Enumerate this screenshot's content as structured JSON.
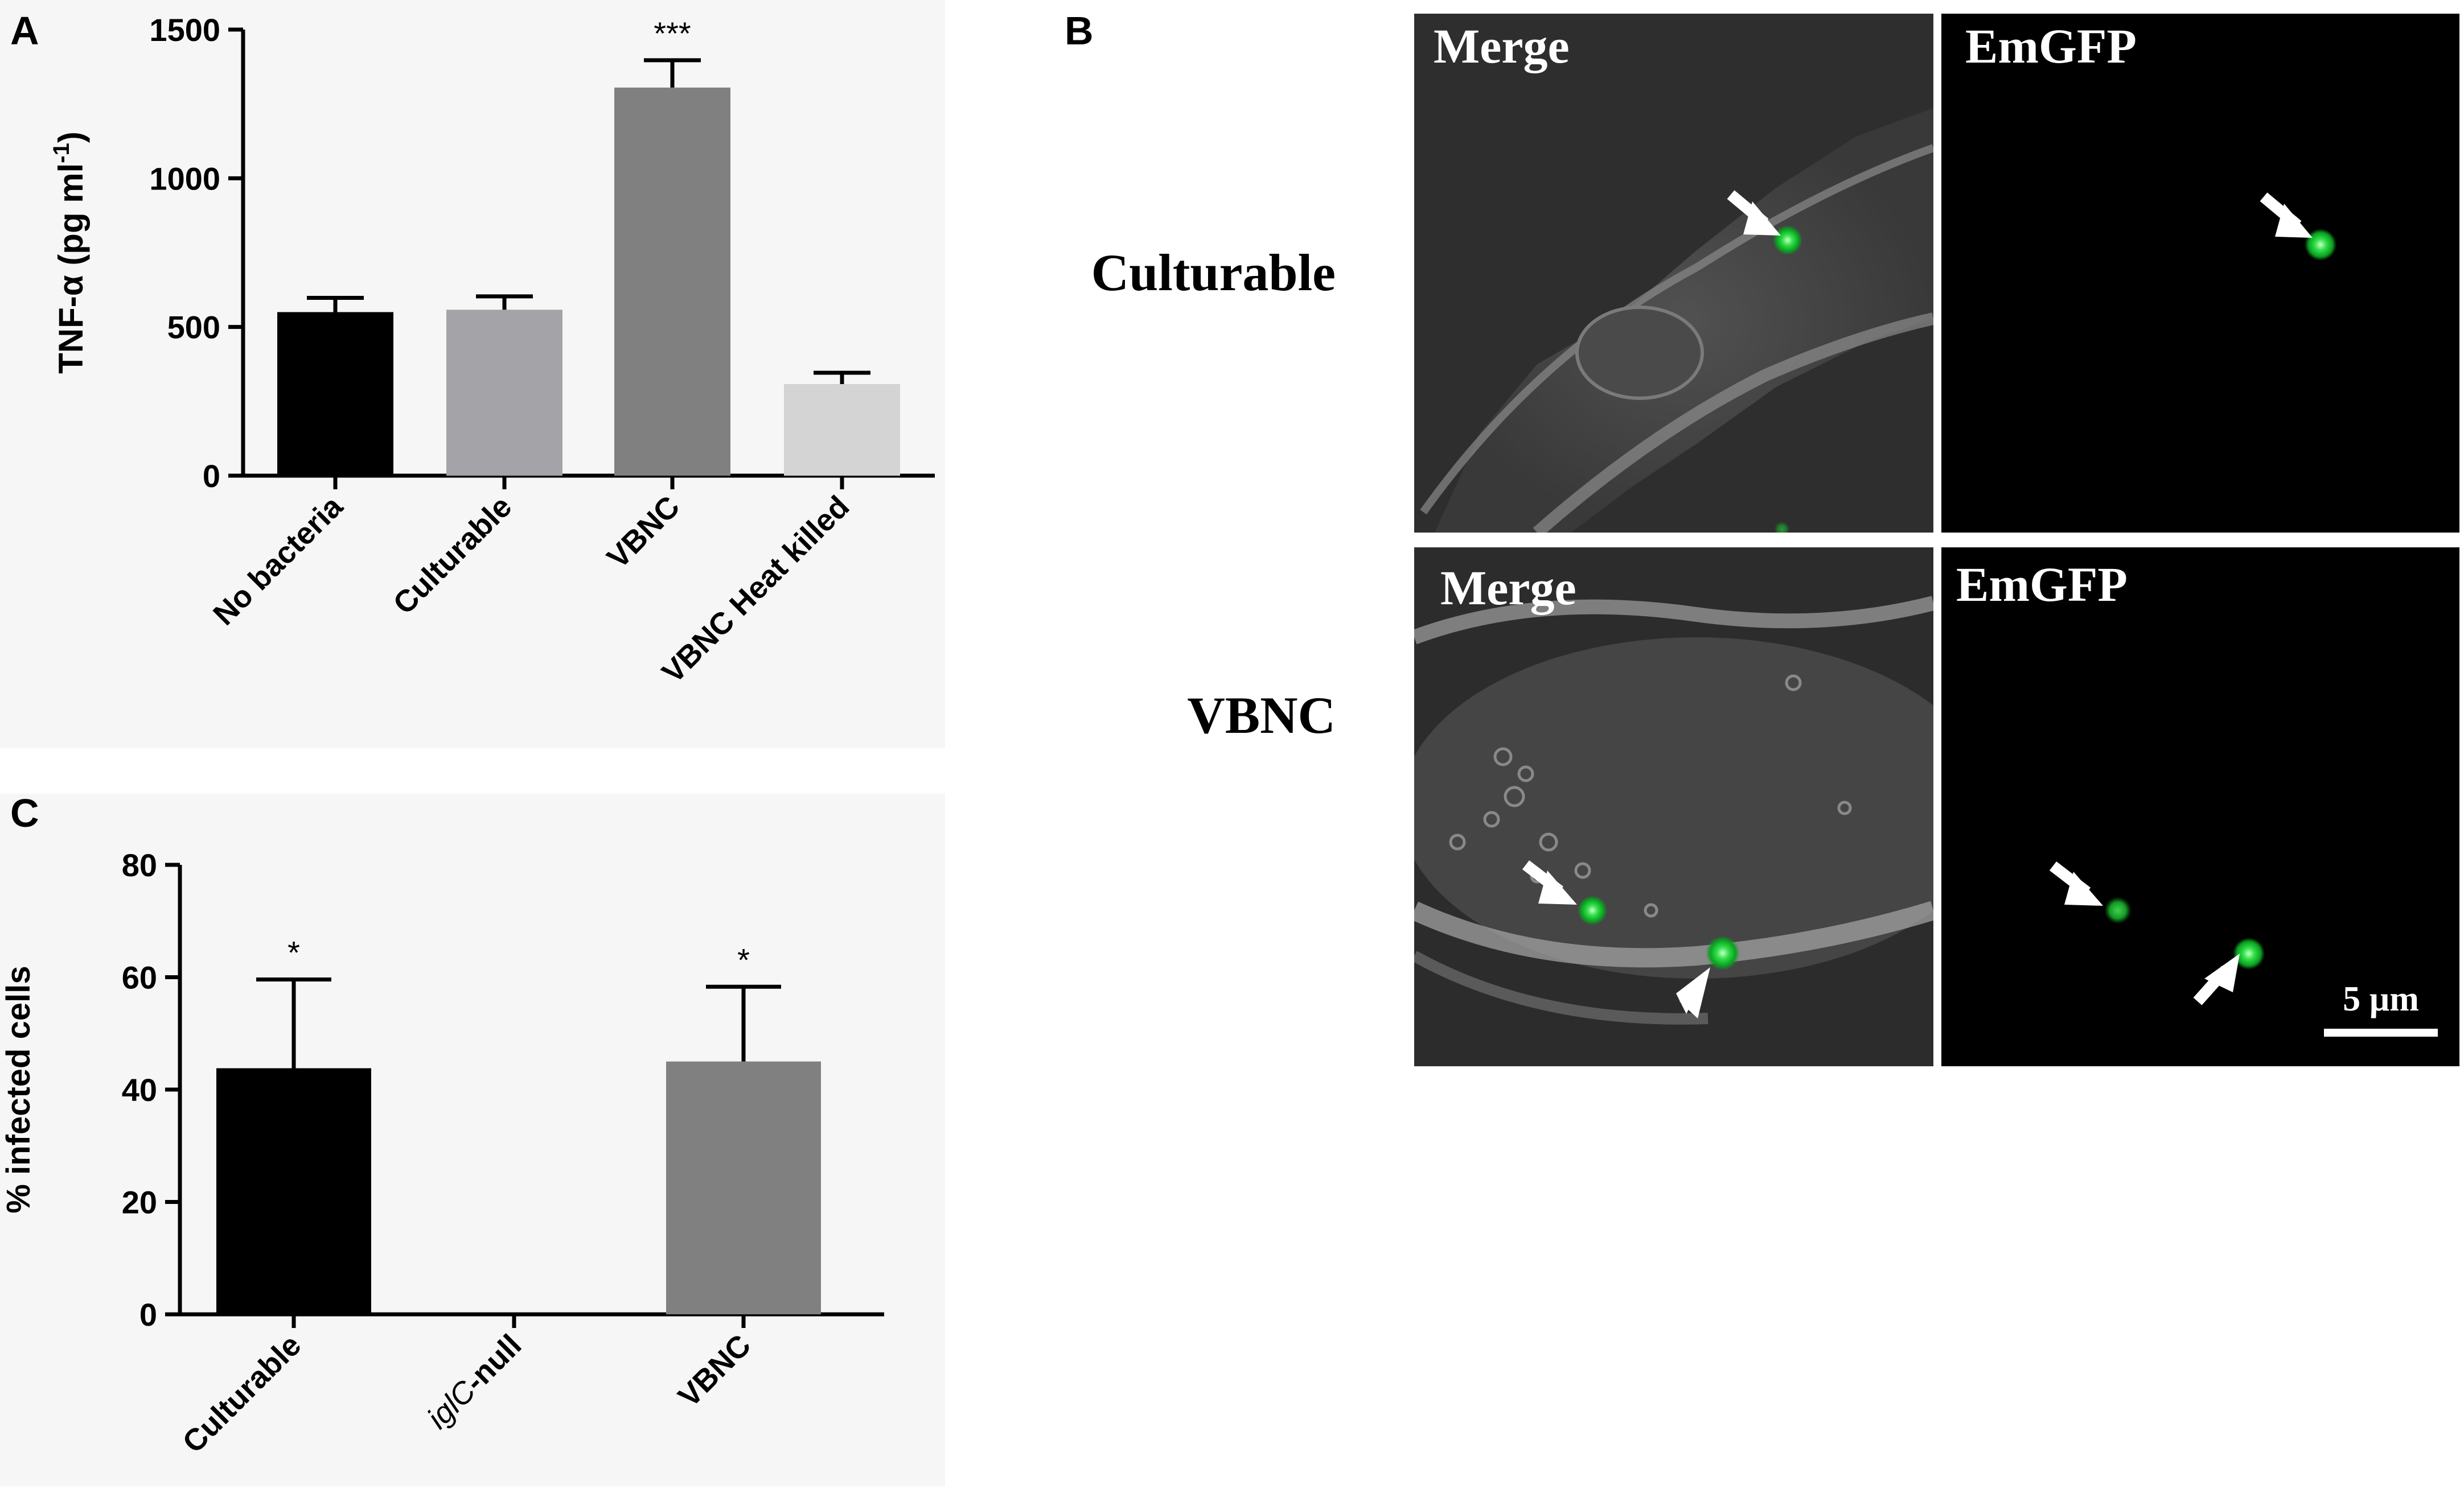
{
  "panel_labels": {
    "a": "A",
    "b": "B",
    "c": "C"
  },
  "chart_data": [
    {
      "panel": "A",
      "type": "bar",
      "categories": [
        "No bacteria",
        "Culturable",
        "VBNC",
        "VBNC Heat killed"
      ],
      "values": [
        550,
        558,
        1305,
        308
      ],
      "errors": [
        48,
        45,
        92,
        38
      ],
      "colors": [
        "#000000",
        "#a4a3a8",
        "#808080",
        "#d4d4d4"
      ],
      "significance": [
        "",
        "",
        "***",
        ""
      ],
      "ylabel_prefix": "TNF-α (pg ml",
      "ylabel_sup": "-1",
      "ylabel_suffix": ")",
      "ylim": [
        0,
        1500
      ],
      "yticks": [
        0,
        500,
        1000,
        1500
      ],
      "xlabel": "",
      "title": ""
    },
    {
      "panel": "C",
      "type": "bar",
      "categories": [
        "Culturable",
        "iglC-null",
        "VBNC"
      ],
      "category_labels": [
        {
          "italic": "",
          "normal": "Culturable"
        },
        {
          "italic": "iglC",
          "normal": "-null"
        },
        {
          "italic": "",
          "normal": "VBNC"
        }
      ],
      "values": [
        43.8,
        0,
        45.0
      ],
      "errors": [
        15.8,
        0,
        13.3
      ],
      "colors": [
        "#000000",
        "#000000",
        "#808080"
      ],
      "significance": [
        "*",
        "",
        "*"
      ],
      "ylabel": "% infected cells",
      "ylim": [
        0,
        80
      ],
      "yticks": [
        0,
        20,
        40,
        60,
        80
      ],
      "xlabel": "",
      "title": ""
    }
  ],
  "microscopy": {
    "row_labels": [
      "Culturable",
      "VBNC"
    ],
    "merge_label": "Merge",
    "emgfp_label": "EmGFP",
    "scale_bar_label": "5 µm"
  }
}
